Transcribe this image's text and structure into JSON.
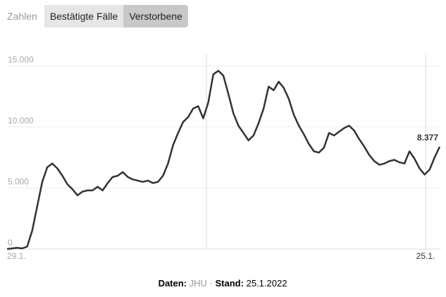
{
  "controls": {
    "label": "Zahlen",
    "tabs": [
      "Bestätigte Fälle",
      "Verstorbene"
    ],
    "active": 1
  },
  "chart_data": {
    "type": "line",
    "categories": [
      "29.1.",
      null,
      null,
      null,
      null,
      null,
      null,
      null,
      null,
      null,
      null,
      null,
      null,
      null,
      null,
      null,
      null,
      null,
      null,
      null,
      null,
      null,
      null,
      null,
      null,
      null,
      null,
      null,
      null,
      null,
      null,
      null,
      null,
      null,
      null,
      null,
      null,
      null,
      null,
      null,
      null,
      null,
      null,
      null,
      null,
      null,
      null,
      null,
      null,
      null,
      null,
      null,
      null,
      null,
      null,
      null,
      null,
      null,
      null,
      null,
      null,
      null,
      null,
      null,
      null,
      null,
      null,
      null,
      null,
      null,
      null,
      null,
      null,
      null,
      null,
      null,
      null,
      null,
      null,
      null,
      null,
      null,
      null,
      null,
      null,
      null,
      "25.1."
    ],
    "series": [
      {
        "name": "Verstorbene",
        "color": "#333333",
        "values": [
          0,
          50,
          100,
          50,
          200,
          1500,
          3500,
          5500,
          6700,
          7000,
          6600,
          6000,
          5300,
          4900,
          4400,
          4700,
          4800,
          4800,
          5100,
          4800,
          5400,
          5900,
          6000,
          6300,
          5900,
          5700,
          5600,
          5500,
          5600,
          5400,
          5500,
          6000,
          7000,
          8500,
          9500,
          10400,
          10800,
          11500,
          11700,
          10700,
          12000,
          14300,
          14600,
          14200,
          12700,
          11100,
          10100,
          9500,
          8900,
          9300,
          10300,
          11500,
          13300,
          13000,
          13700,
          13200,
          12300,
          11000,
          10100,
          9400,
          8600,
          8000,
          7900,
          8300,
          9500,
          9300,
          9600,
          9900,
          10100,
          9700,
          9000,
          8400,
          7700,
          7200,
          6900,
          7000,
          7200,
          7300,
          7100,
          7000,
          8000,
          7400,
          6600,
          6100,
          6500,
          7500,
          8377
        ]
      }
    ],
    "end_label": {
      "value": 8377,
      "label": "8.377"
    },
    "ylim": [
      0,
      16000
    ],
    "yticks": [
      0,
      {
        "value": 5000,
        "label": "5.000"
      },
      {
        "value": 10000,
        "label": "10.000"
      },
      {
        "value": 15000,
        "label": "15.000"
      }
    ],
    "grid": true
  },
  "footer": {
    "source_label": "Daten:",
    "source": "JHU",
    "separator": "·",
    "date_label": "Stand:",
    "date": "25.1.2022"
  }
}
